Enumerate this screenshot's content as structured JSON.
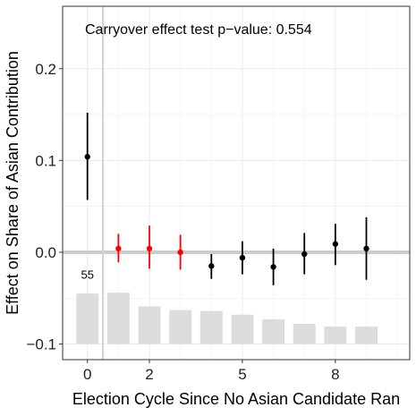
{
  "chart_data": {
    "type": "scatter",
    "annotation": "Carryover effect test p−value: 0.554",
    "xlabel": "Election Cycle  Since No Asian Candidate Ran",
    "ylabel": "Effect on Share of Asian Contribution",
    "x_ticks": [
      0,
      2,
      5,
      8
    ],
    "x_tick_labels": [
      "0",
      "2",
      "5",
      "8"
    ],
    "y_ticks": [
      -0.1,
      0.0,
      0.1,
      0.2
    ],
    "y_tick_labels": [
      "−0.1",
      "0.0",
      "0.1",
      "0.2"
    ],
    "xlim": [
      -0.8,
      10.4
    ],
    "ylim": [
      -0.117,
      0.268
    ],
    "grid": true,
    "zero_line": 0.0,
    "vertical_line_x": 0.5,
    "colors": {
      "pre": "#000000",
      "placebo": "#ff0000",
      "post": "#000000",
      "bars": "#dcdcdc",
      "zero_line": "#cccccc",
      "vline": "#d2d2d2",
      "panel_border": "#333333",
      "grid": "#ebebeb"
    },
    "points": [
      {
        "x": 0,
        "estimate": 0.104,
        "ci_low": 0.057,
        "ci_high": 0.152,
        "group": "pre"
      },
      {
        "x": 1,
        "estimate": 0.004,
        "ci_low": -0.011,
        "ci_high": 0.02,
        "group": "placebo"
      },
      {
        "x": 2,
        "estimate": 0.004,
        "ci_low": -0.018,
        "ci_high": 0.029,
        "group": "placebo"
      },
      {
        "x": 3,
        "estimate": 0.0,
        "ci_low": -0.019,
        "ci_high": 0.019,
        "group": "placebo"
      },
      {
        "x": 4,
        "estimate": -0.015,
        "ci_low": -0.029,
        "ci_high": -0.002,
        "group": "post"
      },
      {
        "x": 5,
        "estimate": -0.006,
        "ci_low": -0.024,
        "ci_high": 0.012,
        "group": "post"
      },
      {
        "x": 6,
        "estimate": -0.016,
        "ci_low": -0.036,
        "ci_high": 0.004,
        "group": "post"
      },
      {
        "x": 7,
        "estimate": -0.002,
        "ci_low": -0.024,
        "ci_high": 0.021,
        "group": "post"
      },
      {
        "x": 8,
        "estimate": 0.009,
        "ci_low": -0.014,
        "ci_high": 0.031,
        "group": "post"
      },
      {
        "x": 9,
        "estimate": 0.004,
        "ci_low": -0.03,
        "ci_high": 0.038,
        "group": "post"
      }
    ],
    "count_bars": {
      "baseline": -0.1,
      "values": [
        0.055,
        0.056,
        0.041,
        0.037,
        0.036,
        0.032,
        0.027,
        0.022,
        0.019,
        0.019
      ],
      "first_label": "55"
    }
  }
}
